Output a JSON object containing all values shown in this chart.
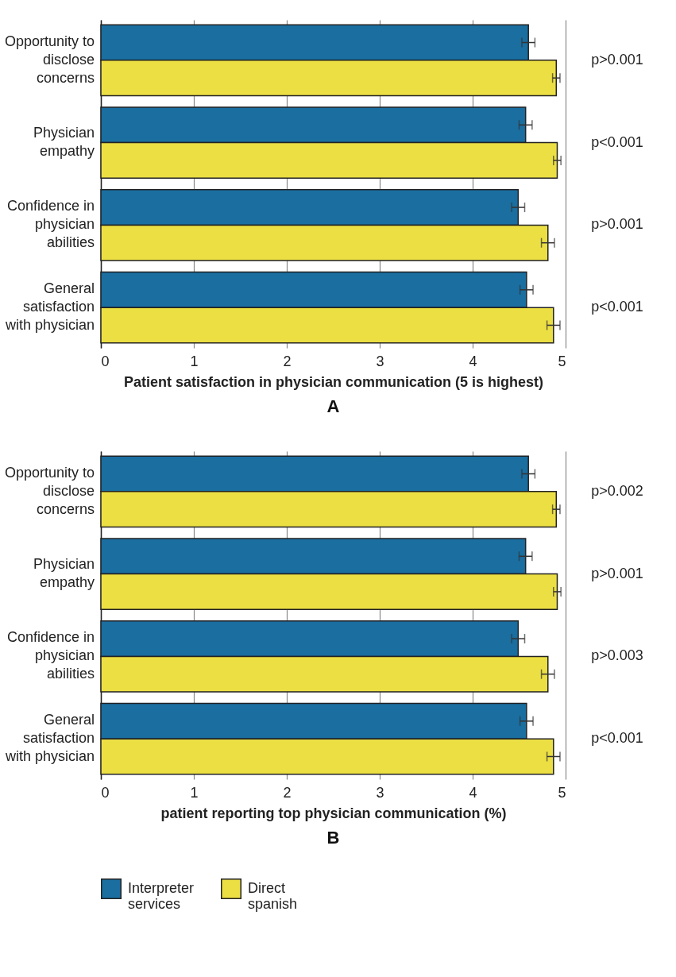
{
  "chart_data": [
    {
      "type": "bar",
      "orientation": "horizontal",
      "title": "A",
      "xlabel": "Patient satisfaction in physician communication (5 is highest)",
      "categories": [
        "Opportunity to disclose concerns",
        "Physician empathy",
        "Confidence in physician abilities",
        "General satisfaction with physician"
      ],
      "series": [
        {
          "name": "Interpreter services",
          "color": "#1a6ea0",
          "values": [
            4.6,
            4.57,
            4.49,
            4.58
          ],
          "errors": [
            0.07,
            0.07,
            0.07,
            0.07
          ]
        },
        {
          "name": "Direct spanish",
          "color": "#ebdf44",
          "values": [
            4.9,
            4.91,
            4.81,
            4.87
          ],
          "errors": [
            0.04,
            0.04,
            0.07,
            0.07
          ]
        }
      ],
      "xlim": [
        0,
        5
      ],
      "xticks": [
        0,
        1,
        2,
        3,
        4,
        5
      ],
      "grid": "x",
      "legend": "bottom",
      "annotations": [
        "p>0.001",
        "p<0.001",
        "p>0.001",
        "p<0.001"
      ]
    },
    {
      "type": "bar",
      "orientation": "horizontal",
      "title": "B",
      "xlabel": "patient reporting top physician communication (%)",
      "categories": [
        "Opportunity to disclose concerns",
        "Physician empathy",
        "Confidence in physician abilities",
        "General satisfaction with physician"
      ],
      "series": [
        {
          "name": "Interpreter services",
          "color": "#1a6ea0",
          "values": [
            4.6,
            4.57,
            4.49,
            4.58
          ],
          "errors": [
            0.07,
            0.07,
            0.07,
            0.07
          ]
        },
        {
          "name": "Direct spanish",
          "color": "#ebdf44",
          "values": [
            4.9,
            4.91,
            4.81,
            4.87
          ],
          "errors": [
            0.04,
            0.04,
            0.07,
            0.07
          ]
        }
      ],
      "xlim": [
        0,
        5
      ],
      "xticks": [
        0,
        1,
        2,
        3,
        4,
        5
      ],
      "grid": "x",
      "legend": "bottom",
      "annotations": [
        "p>0.002",
        "p>0.001",
        "p>0.003",
        "p<0.001"
      ]
    }
  ]
}
